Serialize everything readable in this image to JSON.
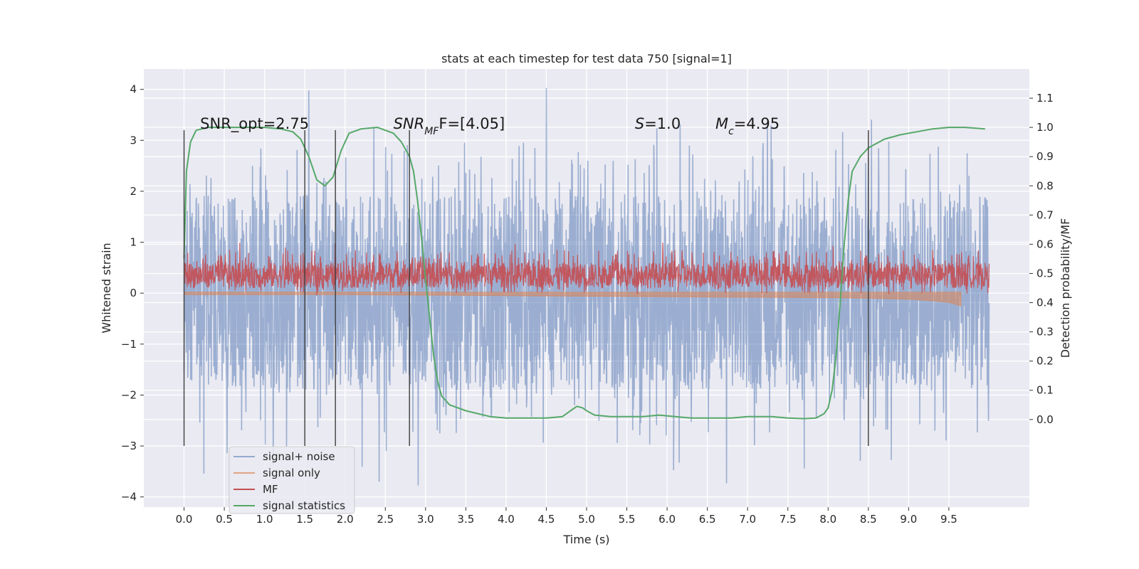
{
  "chart_data": {
    "type": "line",
    "title": "stats at each timestep for test data 750 [signal=1]",
    "xlabel": "Time (s)",
    "ylabel": "Whitened strain",
    "ylabel_right": "Detection probability/MF",
    "xlim": [
      -0.5,
      10.5
    ],
    "ylim": [
      -4.2,
      4.4
    ],
    "ylim_right": [
      -0.3,
      1.2
    ],
    "xticks": [
      "0.0",
      "0.5",
      "1.0",
      "1.5",
      "2.0",
      "2.5",
      "3.0",
      "3.5",
      "4.0",
      "4.5",
      "5.0",
      "5.5",
      "6.0",
      "6.5",
      "7.0",
      "7.5",
      "8.0",
      "8.5",
      "9.0",
      "9.5"
    ],
    "yticks": [
      "4",
      "3",
      "2",
      "1",
      "0",
      "−1",
      "−2",
      "−3",
      "−4"
    ],
    "yticks_right": [
      "1.1",
      "1.0",
      "0.9",
      "0.8",
      "0.7",
      "0.6",
      "0.5",
      "0.4",
      "0.3",
      "0.2",
      "0.1",
      "0.0"
    ],
    "grid": true,
    "legend_position": "lower-left",
    "colors": {
      "signal_noise": "#4c72b0",
      "signal_only": "#dd8452",
      "mf": "#c44e52",
      "signal_statistics": "#55a868",
      "vlines": "#3d3d3d"
    },
    "annotations": [
      {
        "parts": [
          {
            "t": "SNR_opt=2.75",
            "italic": false
          }
        ],
        "x": 0.2,
        "y": 3.2
      },
      {
        "parts": [
          {
            "t": "SNR",
            "italic": true
          },
          {
            "t": "MF",
            "italic": true,
            "sub": true
          },
          {
            "t": "F=[4.05]",
            "italic": false
          }
        ],
        "x": 2.6,
        "y": 3.2
      },
      {
        "parts": [
          {
            "t": "S",
            "italic": true
          },
          {
            "t": "=1.0",
            "italic": false
          }
        ],
        "x": 5.6,
        "y": 3.2
      },
      {
        "parts": [
          {
            "t": "M",
            "italic": true
          },
          {
            "t": "c",
            "italic": true,
            "sub": true
          },
          {
            "t": "=4.95",
            "italic": false
          }
        ],
        "x": 6.6,
        "y": 3.2
      }
    ],
    "vertical_lines": [
      {
        "x": 0.0,
        "y": [
          -3.0,
          3.2
        ]
      },
      {
        "x": 1.5,
        "y": [
          -3.0,
          3.2
        ]
      },
      {
        "x": 1.88,
        "y": [
          -3.0,
          3.2
        ]
      },
      {
        "x": 2.8,
        "y": [
          -3.0,
          3.2
        ]
      },
      {
        "x": 8.5,
        "y": [
          -3.0,
          3.2
        ]
      }
    ],
    "series": [
      {
        "name": "signal+ noise",
        "axis": "left",
        "x_range": [
          0.0,
          10.0
        ],
        "band": [
          -1.9,
          1.9
        ],
        "typical_range": [
          -2.8,
          3.0
        ],
        "extreme_range": [
          -3.85,
          4.05
        ]
      },
      {
        "name": "signal only",
        "axis": "left",
        "x": [
          0.0,
          2.0,
          3.0,
          4.0,
          5.0,
          6.0,
          7.0,
          8.0,
          8.5,
          9.0,
          9.3,
          9.5,
          9.65
        ],
        "values": [
          0.0,
          0.0,
          -0.01,
          -0.02,
          -0.03,
          -0.04,
          -0.05,
          -0.06,
          -0.07,
          -0.09,
          -0.12,
          -0.15,
          -0.22
        ]
      },
      {
        "name": "MF",
        "axis": "left",
        "x_range": [
          0.0,
          10.0
        ],
        "band": [
          0.1,
          0.6
        ],
        "typical_range": [
          0.0,
          0.85
        ],
        "extreme_range": [
          -0.05,
          1.0
        ]
      },
      {
        "name": "signal statistics",
        "axis": "right",
        "x": [
          0.0,
          0.03,
          0.08,
          0.15,
          0.3,
          0.5,
          0.8,
          1.0,
          1.2,
          1.35,
          1.45,
          1.55,
          1.65,
          1.75,
          1.85,
          1.95,
          2.05,
          2.2,
          2.4,
          2.6,
          2.7,
          2.8,
          2.85,
          2.9,
          2.95,
          3.0,
          3.05,
          3.1,
          3.15,
          3.2,
          3.3,
          3.5,
          3.8,
          4.0,
          4.3,
          4.5,
          4.7,
          4.8,
          4.88,
          4.95,
          5.0,
          5.1,
          5.3,
          5.5,
          5.7,
          5.9,
          6.1,
          6.3,
          6.5,
          6.8,
          7.0,
          7.3,
          7.5,
          7.7,
          7.85,
          7.95,
          8.0,
          8.05,
          8.1,
          8.15,
          8.2,
          8.25,
          8.3,
          8.4,
          8.5,
          8.7,
          8.9,
          9.1,
          9.3,
          9.5,
          9.7,
          9.95
        ],
        "values": [
          0.55,
          0.85,
          0.95,
          0.99,
          1.0,
          1.0,
          1.0,
          1.0,
          0.995,
          0.985,
          0.96,
          0.9,
          0.82,
          0.8,
          0.83,
          0.92,
          0.98,
          0.995,
          1.0,
          0.98,
          0.95,
          0.9,
          0.85,
          0.75,
          0.62,
          0.48,
          0.35,
          0.22,
          0.13,
          0.08,
          0.05,
          0.03,
          0.01,
          0.005,
          0.005,
          0.005,
          0.01,
          0.03,
          0.045,
          0.04,
          0.03,
          0.015,
          0.01,
          0.01,
          0.01,
          0.015,
          0.01,
          0.005,
          0.005,
          0.005,
          0.01,
          0.01,
          0.005,
          0.003,
          0.005,
          0.02,
          0.04,
          0.1,
          0.22,
          0.4,
          0.6,
          0.75,
          0.85,
          0.9,
          0.93,
          0.96,
          0.975,
          0.985,
          0.995,
          1.0,
          1.0,
          0.995
        ]
      }
    ]
  }
}
